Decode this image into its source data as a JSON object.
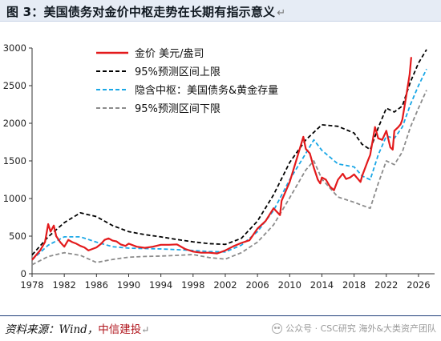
{
  "header": {
    "title": "图 3：美国债务对金价中枢走势在长期有指示意义",
    "return_mark": "↵"
  },
  "footer": {
    "source_prefix": "资料来源：Wind，",
    "source_brand": "中信建投",
    "return_mark": "↵",
    "watermark": "公众号 · CSC研究 海外&大类资产团队"
  },
  "colors": {
    "gold": "#e31a1c",
    "upper": "#000000",
    "center": "#1aa7e6",
    "lower": "#8c8c8c",
    "title_bg": "#e6ecf5"
  },
  "chart_data": {
    "type": "line",
    "ylim": [
      0,
      3000
    ],
    "xlim": [
      1978,
      2028
    ],
    "yticks": [
      0,
      500,
      1000,
      1500,
      2000,
      2500,
      3000
    ],
    "xticks": [
      1978,
      1982,
      1986,
      1990,
      1994,
      1998,
      2002,
      2006,
      2010,
      2014,
      2018,
      2022,
      2026
    ],
    "legend_position": "top-left",
    "series": [
      {
        "name": "金价 美元/盎司",
        "style": "solid",
        "color": "#e31a1c",
        "points": [
          [
            1978,
            185
          ],
          [
            1979,
            310
          ],
          [
            1979.6,
            420
          ],
          [
            1980,
            660
          ],
          [
            1980.3,
            560
          ],
          [
            1980.7,
            640
          ],
          [
            1981,
            500
          ],
          [
            1981.5,
            420
          ],
          [
            1982,
            360
          ],
          [
            1982.5,
            450
          ],
          [
            1983,
            420
          ],
          [
            1983.5,
            400
          ],
          [
            1984,
            370
          ],
          [
            1984.5,
            350
          ],
          [
            1985,
            310
          ],
          [
            1985.5,
            330
          ],
          [
            1986,
            350
          ],
          [
            1986.6,
            400
          ],
          [
            1987,
            450
          ],
          [
            1987.5,
            470
          ],
          [
            1988,
            440
          ],
          [
            1988.5,
            430
          ],
          [
            1989,
            390
          ],
          [
            1989.6,
            370
          ],
          [
            1990,
            400
          ],
          [
            1991,
            360
          ],
          [
            1992,
            345
          ],
          [
            1993,
            360
          ],
          [
            1994,
            385
          ],
          [
            1995,
            385
          ],
          [
            1996,
            390
          ],
          [
            1997,
            330
          ],
          [
            1998,
            295
          ],
          [
            1999,
            280
          ],
          [
            2000,
            280
          ],
          [
            2001,
            270
          ],
          [
            2002,
            310
          ],
          [
            2003,
            365
          ],
          [
            2004,
            410
          ],
          [
            2005,
            445
          ],
          [
            2006,
            600
          ],
          [
            2007,
            700
          ],
          [
            2008,
            870
          ],
          [
            2008.8,
            780
          ],
          [
            2009,
            970
          ],
          [
            2010,
            1220
          ],
          [
            2011,
            1570
          ],
          [
            2011.7,
            1820
          ],
          [
            2012,
            1660
          ],
          [
            2012.5,
            1600
          ],
          [
            2013,
            1410
          ],
          [
            2013.5,
            1250
          ],
          [
            2013.8,
            1200
          ],
          [
            2014,
            1280
          ],
          [
            2014.5,
            1250
          ],
          [
            2015,
            1160
          ],
          [
            2015.5,
            1110
          ],
          [
            2016,
            1250
          ],
          [
            2016.6,
            1330
          ],
          [
            2017,
            1260
          ],
          [
            2017.5,
            1280
          ],
          [
            2018,
            1320
          ],
          [
            2018.8,
            1220
          ],
          [
            2019,
            1300
          ],
          [
            2019.7,
            1500
          ],
          [
            2020,
            1580
          ],
          [
            2020.6,
            1950
          ],
          [
            2021,
            1800
          ],
          [
            2021.5,
            1780
          ],
          [
            2022,
            1900
          ],
          [
            2022.5,
            1680
          ],
          [
            2022.8,
            1650
          ],
          [
            2023,
            1900
          ],
          [
            2023.5,
            1950
          ],
          [
            2023.8,
            1990
          ],
          [
            2024,
            2050
          ],
          [
            2024.5,
            2380
          ],
          [
            2024.9,
            2650
          ],
          [
            2025.1,
            2880
          ]
        ]
      },
      {
        "name": "95%预测区间上限",
        "style": "dashed",
        "color": "#000000",
        "points": [
          [
            1978,
            250
          ],
          [
            1980,
            490
          ],
          [
            1982,
            680
          ],
          [
            1984,
            810
          ],
          [
            1986,
            760
          ],
          [
            1988,
            640
          ],
          [
            1990,
            560
          ],
          [
            1992,
            520
          ],
          [
            1994,
            490
          ],
          [
            1996,
            455
          ],
          [
            1998,
            425
          ],
          [
            2000,
            400
          ],
          [
            2002,
            390
          ],
          [
            2004,
            470
          ],
          [
            2006,
            700
          ],
          [
            2008,
            1050
          ],
          [
            2010,
            1480
          ],
          [
            2012,
            1780
          ],
          [
            2014,
            1980
          ],
          [
            2016,
            1960
          ],
          [
            2018,
            1870
          ],
          [
            2019,
            1720
          ],
          [
            2020,
            1650
          ],
          [
            2021,
            1940
          ],
          [
            2022,
            2200
          ],
          [
            2023,
            2150
          ],
          [
            2024,
            2230
          ],
          [
            2025,
            2550
          ],
          [
            2026,
            2800
          ],
          [
            2027,
            2980
          ]
        ]
      },
      {
        "name": "隐含中枢：美国债务&黄金存量",
        "style": "dashed",
        "color": "#1aa7e6",
        "points": [
          [
            1978,
            185
          ],
          [
            1980,
            380
          ],
          [
            1982,
            490
          ],
          [
            1984,
            490
          ],
          [
            1986,
            420
          ],
          [
            1988,
            360
          ],
          [
            1990,
            340
          ],
          [
            1992,
            335
          ],
          [
            1994,
            330
          ],
          [
            1996,
            320
          ],
          [
            1998,
            310
          ],
          [
            2000,
            295
          ],
          [
            2002,
            290
          ],
          [
            2004,
            380
          ],
          [
            2006,
            560
          ],
          [
            2008,
            840
          ],
          [
            2010,
            1250
          ],
          [
            2012,
            1600
          ],
          [
            2013,
            1780
          ],
          [
            2014,
            1640
          ],
          [
            2016,
            1460
          ],
          [
            2018,
            1420
          ],
          [
            2019,
            1300
          ],
          [
            2020,
            1250
          ],
          [
            2021,
            1580
          ],
          [
            2022,
            1830
          ],
          [
            2023,
            1800
          ],
          [
            2024,
            1950
          ],
          [
            2025,
            2250
          ],
          [
            2026,
            2500
          ],
          [
            2027,
            2720
          ]
        ]
      },
      {
        "name": "95%预测区间下限",
        "style": "dashed",
        "color": "#8c8c8c",
        "points": [
          [
            1978,
            120
          ],
          [
            1980,
            230
          ],
          [
            1982,
            280
          ],
          [
            1984,
            245
          ],
          [
            1986,
            150
          ],
          [
            1988,
            190
          ],
          [
            1990,
            220
          ],
          [
            1992,
            230
          ],
          [
            1994,
            235
          ],
          [
            1996,
            245
          ],
          [
            1998,
            255
          ],
          [
            2000,
            215
          ],
          [
            2002,
            195
          ],
          [
            2004,
            280
          ],
          [
            2006,
            420
          ],
          [
            2008,
            650
          ],
          [
            2010,
            1010
          ],
          [
            2012,
            1380
          ],
          [
            2013,
            1500
          ],
          [
            2014,
            1260
          ],
          [
            2016,
            1020
          ],
          [
            2018,
            950
          ],
          [
            2019,
            910
          ],
          [
            2020,
            870
          ],
          [
            2021,
            1200
          ],
          [
            2022,
            1500
          ],
          [
            2023,
            1450
          ],
          [
            2024,
            1620
          ],
          [
            2025,
            1950
          ],
          [
            2026,
            2200
          ],
          [
            2027,
            2440
          ]
        ]
      }
    ]
  }
}
